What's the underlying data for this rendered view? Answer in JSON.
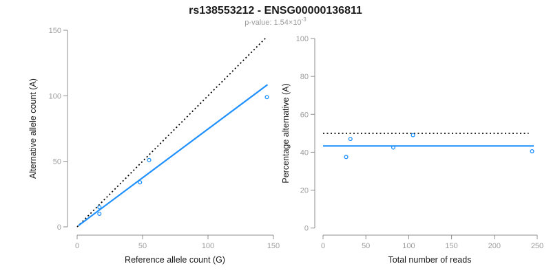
{
  "title": "rs138553212 - ENSG00000136811",
  "subtitle": {
    "pvalue_prefix": "p-value: 1.54×10",
    "pvalue_exponent": "-3"
  },
  "colors": {
    "accent_blue": "#1E90FF",
    "axis_gray": "#8c8c8c",
    "tick_label_gray": "#9c9c9c",
    "title_black": "#1a1a1a",
    "subtitle_gray": "#9b9b9b",
    "axis_label_black": "#1a1a1a",
    "dotted_black": "#000000"
  },
  "chart_data": [
    {
      "type": "scatter",
      "xlabel": "Reference allele count (G)",
      "ylabel": "Alternative allele count (A)",
      "xlim": [
        0,
        150
      ],
      "ylim": [
        0,
        150
      ],
      "xticks": [
        0,
        50,
        100,
        150
      ],
      "yticks": [
        0,
        50,
        100,
        150
      ],
      "grid": false,
      "points": [
        [
          17,
          15
        ],
        [
          17,
          10
        ],
        [
          48,
          34
        ],
        [
          55,
          51
        ],
        [
          145,
          99
        ]
      ],
      "lines": [
        {
          "name": "identity-line",
          "style": "dotted",
          "color": "#000000",
          "from": [
            0,
            0
          ],
          "to": [
            144,
            144
          ]
        },
        {
          "name": "fit-line",
          "style": "solid",
          "color": "#1E90FF",
          "from": [
            1,
            1
          ],
          "to": [
            145.5,
            108.5
          ]
        }
      ]
    },
    {
      "type": "scatter",
      "xlabel": "Total number of reads",
      "ylabel": "Percentage alternative (A)",
      "xlim": [
        0,
        250
      ],
      "ylim": [
        0,
        100
      ],
      "xticks": [
        0,
        50,
        100,
        150,
        200,
        250
      ],
      "yticks": [
        0,
        20,
        40,
        60,
        80,
        100
      ],
      "grid": false,
      "points": [
        [
          27,
          37.5
        ],
        [
          32,
          47
        ],
        [
          82,
          42.5
        ],
        [
          105,
          49
        ],
        [
          244,
          40.5
        ]
      ],
      "lines": [
        {
          "name": "expected-50pct-line",
          "style": "dotted",
          "color": "#000000",
          "from": [
            0,
            50
          ],
          "to": [
            240,
            50
          ]
        },
        {
          "name": "mean-percentage-line",
          "style": "solid",
          "color": "#1E90FF",
          "from": [
            0,
            43.3
          ],
          "to": [
            246,
            43.3
          ]
        }
      ]
    }
  ]
}
